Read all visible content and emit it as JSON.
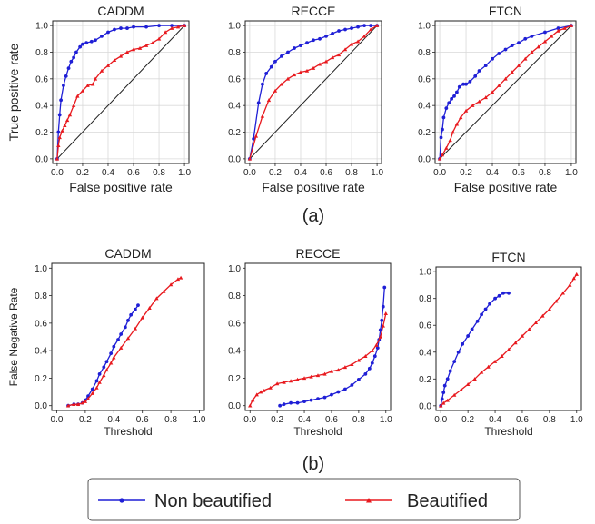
{
  "figure": {
    "caption_a": "(a)",
    "caption_b": "(b)"
  },
  "legend": {
    "items": [
      {
        "label": "Non beautified",
        "color": "#1f1fd6",
        "marker": "circle"
      },
      {
        "label": "Beautified",
        "color": "#e8191e",
        "marker": "triangle"
      }
    ]
  },
  "chart_data": [
    {
      "type": "line",
      "title": "CADDM",
      "xlabel": "False positive rate",
      "ylabel": "True positive rate",
      "xlim": [
        0,
        1
      ],
      "ylim": [
        0,
        1
      ],
      "xticks": [
        "0.0",
        "0.2",
        "0.4",
        "0.6",
        "0.8",
        "1.0"
      ],
      "yticks": [
        "0.0",
        "0.2",
        "0.4",
        "0.6",
        "0.8",
        "1.0"
      ],
      "grid": true,
      "diagonal": true,
      "series": [
        {
          "name": "Non beautified",
          "x": [
            0,
            0.01,
            0.02,
            0.03,
            0.05,
            0.07,
            0.09,
            0.11,
            0.13,
            0.15,
            0.18,
            0.2,
            0.23,
            0.27,
            0.3,
            0.35,
            0.4,
            0.45,
            0.5,
            0.55,
            0.6,
            0.7,
            0.8,
            0.9,
            1.0
          ],
          "y": [
            0,
            0.2,
            0.33,
            0.44,
            0.55,
            0.62,
            0.68,
            0.73,
            0.76,
            0.8,
            0.84,
            0.86,
            0.87,
            0.88,
            0.89,
            0.92,
            0.95,
            0.97,
            0.98,
            0.98,
            0.99,
            0.99,
            1.0,
            1.0,
            1.0
          ]
        },
        {
          "name": "Beautified",
          "x": [
            0,
            0.01,
            0.02,
            0.04,
            0.06,
            0.08,
            0.1,
            0.13,
            0.16,
            0.2,
            0.24,
            0.28,
            0.3,
            0.35,
            0.4,
            0.45,
            0.5,
            0.55,
            0.6,
            0.65,
            0.7,
            0.75,
            0.8,
            0.85,
            0.9,
            0.95,
            1.0
          ],
          "y": [
            0,
            0.1,
            0.16,
            0.21,
            0.25,
            0.29,
            0.33,
            0.4,
            0.47,
            0.51,
            0.55,
            0.56,
            0.6,
            0.66,
            0.7,
            0.74,
            0.77,
            0.8,
            0.82,
            0.83,
            0.85,
            0.87,
            0.9,
            0.95,
            0.98,
            0.99,
            1.0
          ]
        }
      ]
    },
    {
      "type": "line",
      "title": "RECCE",
      "xlabel": "False positive rate",
      "ylabel": "",
      "xlim": [
        0,
        1
      ],
      "ylim": [
        0,
        1
      ],
      "xticks": [
        "0.0",
        "0.2",
        "0.4",
        "0.6",
        "0.8",
        "1.0"
      ],
      "yticks": [
        "0.0",
        "0.2",
        "0.4",
        "0.6",
        "0.8",
        "1.0"
      ],
      "grid": true,
      "diagonal": true,
      "series": [
        {
          "name": "Non beautified",
          "x": [
            0,
            0.03,
            0.07,
            0.1,
            0.13,
            0.17,
            0.2,
            0.25,
            0.3,
            0.35,
            0.4,
            0.45,
            0.5,
            0.55,
            0.6,
            0.65,
            0.7,
            0.75,
            0.8,
            0.85,
            0.9,
            0.95,
            1.0
          ],
          "y": [
            0,
            0.15,
            0.42,
            0.56,
            0.64,
            0.69,
            0.73,
            0.77,
            0.8,
            0.83,
            0.85,
            0.87,
            0.89,
            0.9,
            0.92,
            0.94,
            0.96,
            0.97,
            0.98,
            0.99,
            1.0,
            1.0,
            1.0
          ]
        },
        {
          "name": "Beautified",
          "x": [
            0,
            0.05,
            0.1,
            0.15,
            0.2,
            0.25,
            0.3,
            0.35,
            0.4,
            0.45,
            0.5,
            0.55,
            0.6,
            0.65,
            0.7,
            0.75,
            0.8,
            0.85,
            0.9,
            0.95,
            1.0
          ],
          "y": [
            0,
            0.17,
            0.32,
            0.44,
            0.51,
            0.56,
            0.6,
            0.63,
            0.65,
            0.66,
            0.68,
            0.71,
            0.73,
            0.76,
            0.78,
            0.82,
            0.86,
            0.88,
            0.92,
            0.97,
            1.0
          ]
        }
      ]
    },
    {
      "type": "line",
      "title": "FTCN",
      "xlabel": "False positive rate",
      "ylabel": "",
      "xlim": [
        0,
        1
      ],
      "ylim": [
        0,
        1
      ],
      "xticks": [
        "0.0",
        "0.2",
        "0.4",
        "0.6",
        "0.8",
        "1.0"
      ],
      "yticks": [
        "0.0",
        "0.2",
        "0.4",
        "0.6",
        "0.8",
        "1.0"
      ],
      "grid": true,
      "diagonal": true,
      "series": [
        {
          "name": "Non beautified",
          "x": [
            0,
            0.01,
            0.02,
            0.03,
            0.05,
            0.07,
            0.09,
            0.11,
            0.13,
            0.15,
            0.18,
            0.2,
            0.23,
            0.27,
            0.3,
            0.35,
            0.4,
            0.45,
            0.5,
            0.55,
            0.6,
            0.65,
            0.7,
            0.8,
            0.9,
            1.0
          ],
          "y": [
            0,
            0.16,
            0.22,
            0.31,
            0.38,
            0.42,
            0.45,
            0.47,
            0.5,
            0.54,
            0.56,
            0.56,
            0.58,
            0.62,
            0.66,
            0.7,
            0.75,
            0.79,
            0.82,
            0.85,
            0.87,
            0.9,
            0.92,
            0.95,
            0.98,
            1.0
          ]
        },
        {
          "name": "Beautified",
          "x": [
            0,
            0.02,
            0.05,
            0.08,
            0.1,
            0.13,
            0.16,
            0.2,
            0.25,
            0.3,
            0.35,
            0.4,
            0.45,
            0.5,
            0.55,
            0.6,
            0.65,
            0.7,
            0.75,
            0.8,
            0.85,
            0.9,
            0.95,
            1.0
          ],
          "y": [
            0,
            0.03,
            0.08,
            0.14,
            0.2,
            0.26,
            0.31,
            0.36,
            0.4,
            0.43,
            0.46,
            0.5,
            0.55,
            0.6,
            0.65,
            0.7,
            0.75,
            0.8,
            0.84,
            0.88,
            0.92,
            0.96,
            0.98,
            1.0
          ]
        }
      ]
    },
    {
      "type": "line",
      "title": "CADDM",
      "xlabel": "Threshold",
      "ylabel": "False Negative Rate",
      "xlim": [
        0,
        1
      ],
      "ylim": [
        0,
        1
      ],
      "xticks": [
        "0.0",
        "0.2",
        "0.4",
        "0.6",
        "0.8",
        "1.0"
      ],
      "yticks": [
        "0.0",
        "0.2",
        "0.4",
        "0.6",
        "0.8",
        "1.0"
      ],
      "grid": false,
      "diagonal": false,
      "series": [
        {
          "name": "Non beautified",
          "x": [
            0.08,
            0.12,
            0.15,
            0.18,
            0.2,
            0.22,
            0.25,
            0.28,
            0.3,
            0.33,
            0.35,
            0.38,
            0.4,
            0.43,
            0.45,
            0.48,
            0.5,
            0.52,
            0.55,
            0.57
          ],
          "y": [
            0,
            0.01,
            0.01,
            0.02,
            0.04,
            0.07,
            0.12,
            0.18,
            0.23,
            0.28,
            0.32,
            0.38,
            0.43,
            0.48,
            0.52,
            0.57,
            0.62,
            0.66,
            0.7,
            0.73
          ]
        },
        {
          "name": "Beautified",
          "x": [
            0.08,
            0.12,
            0.15,
            0.18,
            0.2,
            0.22,
            0.25,
            0.28,
            0.3,
            0.33,
            0.35,
            0.38,
            0.4,
            0.45,
            0.5,
            0.55,
            0.6,
            0.65,
            0.7,
            0.75,
            0.8,
            0.85,
            0.87
          ],
          "y": [
            0,
            0.01,
            0.01,
            0.02,
            0.03,
            0.05,
            0.09,
            0.13,
            0.17,
            0.22,
            0.26,
            0.31,
            0.35,
            0.42,
            0.49,
            0.56,
            0.64,
            0.71,
            0.78,
            0.83,
            0.88,
            0.92,
            0.93
          ]
        }
      ]
    },
    {
      "type": "line",
      "title": "RECCE",
      "xlabel": "Threshold",
      "ylabel": "",
      "xlim": [
        0,
        1
      ],
      "ylim": [
        0,
        1
      ],
      "xticks": [
        "0.0",
        "0.2",
        "0.4",
        "0.6",
        "0.8",
        "1.0"
      ],
      "yticks": [
        "0.0",
        "0.2",
        "0.4",
        "0.6",
        "0.8",
        "1.0"
      ],
      "grid": false,
      "diagonal": false,
      "series": [
        {
          "name": "Non beautified",
          "x": [
            0.22,
            0.25,
            0.3,
            0.35,
            0.4,
            0.45,
            0.5,
            0.55,
            0.6,
            0.65,
            0.7,
            0.75,
            0.8,
            0.85,
            0.88,
            0.9,
            0.92,
            0.94,
            0.95,
            0.96,
            0.97,
            0.98,
            0.99
          ],
          "y": [
            0,
            0.01,
            0.02,
            0.02,
            0.03,
            0.04,
            0.05,
            0.06,
            0.08,
            0.1,
            0.12,
            0.15,
            0.19,
            0.23,
            0.27,
            0.31,
            0.36,
            0.42,
            0.48,
            0.55,
            0.62,
            0.72,
            0.86
          ]
        },
        {
          "name": "Beautified",
          "x": [
            0,
            0.02,
            0.05,
            0.08,
            0.1,
            0.15,
            0.2,
            0.25,
            0.3,
            0.35,
            0.4,
            0.45,
            0.5,
            0.55,
            0.6,
            0.65,
            0.7,
            0.75,
            0.8,
            0.85,
            0.9,
            0.93,
            0.96,
            0.98,
            1.0
          ],
          "y": [
            0,
            0.04,
            0.08,
            0.1,
            0.11,
            0.13,
            0.16,
            0.17,
            0.18,
            0.19,
            0.2,
            0.21,
            0.22,
            0.23,
            0.25,
            0.26,
            0.28,
            0.3,
            0.33,
            0.36,
            0.4,
            0.44,
            0.5,
            0.58,
            0.67
          ]
        }
      ]
    },
    {
      "type": "line",
      "title": "FTCN",
      "xlabel": "Threshold",
      "ylabel": "",
      "xlim": [
        0,
        1
      ],
      "ylim": [
        0,
        1
      ],
      "xticks": [
        "0.0",
        "0.2",
        "0.4",
        "0.6",
        "0.8",
        "1.0"
      ],
      "yticks": [
        "0.0",
        "0.2",
        "0.4",
        "0.6",
        "0.8",
        "1.0"
      ],
      "grid": false,
      "diagonal": false,
      "series": [
        {
          "name": "Non beautified",
          "x": [
            0,
            0.01,
            0.02,
            0.03,
            0.05,
            0.07,
            0.1,
            0.13,
            0.16,
            0.2,
            0.23,
            0.27,
            0.3,
            0.33,
            0.36,
            0.4,
            0.43,
            0.46,
            0.5
          ],
          "y": [
            0,
            0.05,
            0.1,
            0.15,
            0.2,
            0.26,
            0.33,
            0.4,
            0.46,
            0.52,
            0.57,
            0.63,
            0.68,
            0.72,
            0.76,
            0.8,
            0.82,
            0.84,
            0.84
          ]
        },
        {
          "name": "Beautified",
          "x": [
            0,
            0.02,
            0.05,
            0.1,
            0.15,
            0.2,
            0.25,
            0.3,
            0.35,
            0.4,
            0.45,
            0.5,
            0.55,
            0.6,
            0.65,
            0.7,
            0.75,
            0.8,
            0.85,
            0.9,
            0.95,
            0.98,
            1.0
          ],
          "y": [
            0,
            0.02,
            0.04,
            0.08,
            0.12,
            0.16,
            0.2,
            0.25,
            0.29,
            0.33,
            0.37,
            0.42,
            0.47,
            0.52,
            0.57,
            0.62,
            0.67,
            0.72,
            0.78,
            0.84,
            0.9,
            0.95,
            0.98
          ]
        }
      ]
    }
  ]
}
